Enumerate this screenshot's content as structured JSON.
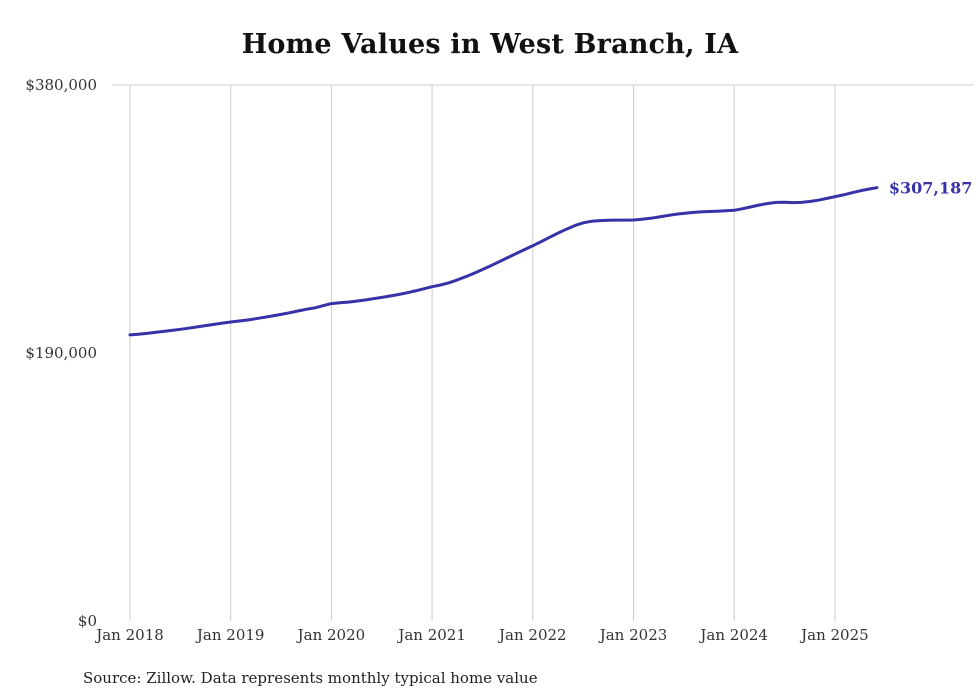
{
  "title": "Home Values in West Branch, IA",
  "source": "Source: Zillow. Data represents monthly typical home value",
  "colors": {
    "line": "#3632a8",
    "grid": "#cccccc",
    "text": "#333333",
    "title": "#111111"
  },
  "chart_data": {
    "type": "line",
    "title": "Home Values in West Branch, IA",
    "xlabel": "",
    "ylabel": "",
    "ylim": [
      0,
      380000
    ],
    "grid": "vertical-gridlines-plus-top-rule",
    "legend": "none",
    "frequency": "monthly",
    "start_month": "2018-01",
    "end_month": "2025-06",
    "x_tick_labels": [
      "Jan 2018",
      "Jan 2019",
      "Jan 2020",
      "Jan 2021",
      "Jan 2022",
      "Jan 2023",
      "Jan 2024",
      "Jan 2025"
    ],
    "x_tick_month_indices": [
      0,
      12,
      24,
      36,
      48,
      60,
      72,
      84
    ],
    "y_ticks": [
      {
        "label": "$0",
        "value": 0
      },
      {
        "label": "$190,000",
        "value": 190000
      },
      {
        "label": "$380,000",
        "value": 380000
      }
    ],
    "final_value": 307187,
    "final_label": "$307,187",
    "series": [
      {
        "name": "Typical home value",
        "values": [
          202800,
          203300,
          203900,
          204600,
          205300,
          206000,
          206800,
          207600,
          208500,
          209400,
          210300,
          211200,
          212000,
          212700,
          213400,
          214300,
          215300,
          216300,
          217400,
          218500,
          219800,
          221000,
          222000,
          223500,
          225000,
          225600,
          226100,
          226800,
          227600,
          228500,
          229400,
          230400,
          231500,
          232700,
          234000,
          235500,
          237000,
          238200,
          239800,
          241800,
          244100,
          246600,
          249200,
          251900,
          254700,
          257600,
          260500,
          263300,
          266000,
          269000,
          272000,
          275000,
          277800,
          280300,
          282300,
          283400,
          283900,
          284100,
          284200,
          284200,
          284300,
          284800,
          285500,
          286400,
          287400,
          288300,
          289000,
          289600,
          290000,
          290300,
          290500,
          290800,
          291200,
          292300,
          293600,
          294900,
          296000,
          296800,
          296900,
          296600,
          296800,
          297400,
          298300,
          299500,
          300800,
          302100,
          303600,
          305000,
          306200,
          307187
        ]
      }
    ]
  }
}
